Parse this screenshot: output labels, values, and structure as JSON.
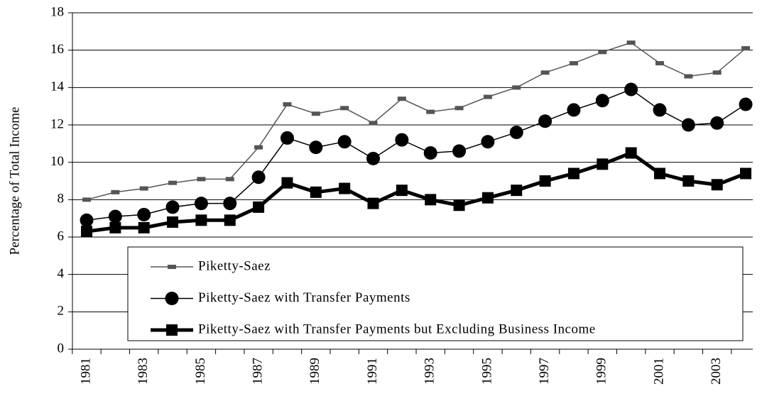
{
  "chart_data": {
    "type": "line",
    "y_label": "Percentage of Total Income",
    "categories": [
      "1981",
      null,
      "1983",
      null,
      "1985",
      null,
      "1987",
      null,
      "1989",
      null,
      "1991",
      null,
      "1993",
      null,
      "1995",
      null,
      "1997",
      null,
      "1999",
      null,
      "2001",
      null,
      "2003",
      null
    ],
    "series": [
      {
        "name": "Piketty-Saez",
        "color": "#555555",
        "values": [
          8.0,
          8.4,
          8.6,
          8.9,
          9.1,
          9.1,
          10.8,
          13.1,
          12.6,
          12.9,
          12.1,
          13.4,
          12.7,
          12.9,
          13.5,
          14.0,
          14.8,
          15.3,
          15.9,
          16.4,
          15.3,
          14.6,
          14.8,
          16.1
        ]
      },
      {
        "name": "Piketty-Saez with Transfer Payments",
        "color": "#000000",
        "values": [
          6.9,
          7.1,
          7.2,
          7.6,
          7.8,
          7.8,
          9.2,
          11.3,
          10.8,
          11.1,
          10.2,
          11.2,
          10.5,
          10.6,
          11.1,
          11.6,
          12.2,
          12.8,
          13.3,
          13.9,
          12.8,
          12.0,
          12.1,
          13.1
        ]
      },
      {
        "name": "Piketty-Saez with Transfer Payments but Excluding Business Income",
        "color": "#000000",
        "values": [
          6.3,
          6.5,
          6.5,
          6.8,
          6.9,
          6.9,
          7.6,
          8.9,
          8.4,
          8.6,
          7.8,
          8.5,
          8.0,
          7.7,
          8.1,
          8.5,
          9.0,
          9.4,
          9.9,
          10.5,
          9.4,
          9.0,
          8.8,
          9.4
        ]
      }
    ],
    "ylim": [
      0,
      18
    ],
    "yticks": [
      0,
      2,
      4,
      6,
      8,
      10,
      12,
      14,
      16,
      18
    ],
    "grid": true
  }
}
